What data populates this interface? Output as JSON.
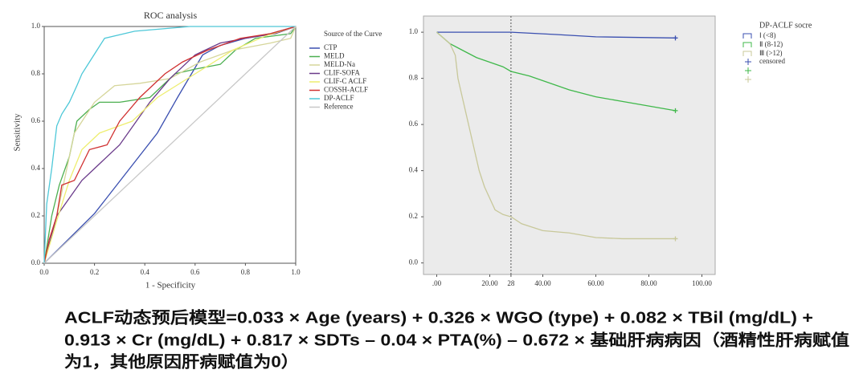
{
  "chart_data": [
    {
      "type": "line",
      "title": "ROC analysis",
      "x_label": "1 - Specificity",
      "y_label": "Sensitivity",
      "legend_title": "Source of the Curve",
      "xlim": [
        0,
        1
      ],
      "ylim": [
        0,
        1
      ],
      "xticks": [
        {
          "value": 0,
          "label": "0.0"
        },
        0.2,
        0.4,
        0.6,
        0.8,
        {
          "value": 1,
          "label": "1.0"
        }
      ],
      "yticks": [
        {
          "value": 0,
          "label": "0.0"
        },
        0.2,
        0.4,
        0.6,
        0.8,
        {
          "value": 1,
          "label": "1.0"
        }
      ],
      "series": [
        {
          "name": "CTP",
          "color": "#3a4fb0",
          "x": [
            0,
            0.2,
            0.45,
            0.53,
            0.63,
            0.7,
            0.8,
            0.9,
            1
          ],
          "values": [
            0,
            0.21,
            0.55,
            0.7,
            0.88,
            0.92,
            0.95,
            0.97,
            1
          ]
        },
        {
          "name": "MELD",
          "color": "#4caf50",
          "x": [
            0,
            0.03,
            0.06,
            0.1,
            0.13,
            0.18,
            0.22,
            0.3,
            0.42,
            0.52,
            0.6,
            0.7,
            0.76,
            0.84,
            0.98,
            1
          ],
          "values": [
            0,
            0.2,
            0.33,
            0.45,
            0.6,
            0.65,
            0.68,
            0.68,
            0.7,
            0.8,
            0.82,
            0.84,
            0.9,
            0.95,
            0.97,
            1
          ]
        },
        {
          "name": "MELD-Na",
          "color": "#d6d69a",
          "x": [
            0,
            0.05,
            0.12,
            0.2,
            0.28,
            0.38,
            0.5,
            0.62,
            0.75,
            0.9,
            0.98,
            1
          ],
          "values": [
            0,
            0.2,
            0.55,
            0.68,
            0.75,
            0.76,
            0.78,
            0.85,
            0.9,
            0.93,
            0.95,
            1
          ]
        },
        {
          "name": "CLIF-SOFA",
          "color": "#6a3a8a",
          "x": [
            0,
            0.05,
            0.15,
            0.3,
            0.42,
            0.5,
            0.6,
            0.7,
            0.8,
            0.92,
            1
          ],
          "values": [
            0,
            0.2,
            0.35,
            0.5,
            0.68,
            0.78,
            0.88,
            0.93,
            0.95,
            0.97,
            1
          ]
        },
        {
          "name": "CLIF-C ACLF",
          "color": "#eeee70",
          "x": [
            0,
            0.05,
            0.1,
            0.15,
            0.22,
            0.35,
            0.45,
            0.6,
            0.75,
            0.88,
            1
          ],
          "values": [
            0,
            0.18,
            0.35,
            0.48,
            0.55,
            0.6,
            0.7,
            0.8,
            0.9,
            0.96,
            1
          ]
        },
        {
          "name": "COSSH-ACLF",
          "color": "#d03030",
          "x": [
            0,
            0.02,
            0.05,
            0.07,
            0.12,
            0.18,
            0.25,
            0.3,
            0.38,
            0.48,
            0.55,
            0.65,
            0.78,
            0.9,
            1
          ],
          "values": [
            0,
            0.1,
            0.2,
            0.33,
            0.35,
            0.48,
            0.5,
            0.6,
            0.7,
            0.8,
            0.85,
            0.9,
            0.95,
            0.97,
            1
          ]
        },
        {
          "name": "DP-ACLF",
          "color": "#4ec8d8",
          "x": [
            0,
            0.01,
            0.03,
            0.05,
            0.07,
            0.1,
            0.13,
            0.15,
            0.18,
            0.21,
            0.24,
            0.36,
            0.58,
            1
          ],
          "values": [
            0,
            0.25,
            0.4,
            0.58,
            0.63,
            0.68,
            0.75,
            0.8,
            0.85,
            0.9,
            0.95,
            0.98,
            1,
            1
          ]
        },
        {
          "name": "Reference",
          "color": "#c8c8c8",
          "x": [
            0,
            1
          ],
          "values": [
            0,
            1
          ]
        }
      ]
    },
    {
      "type": "line",
      "legend_title": "DP-ACLF socre",
      "censored_label": "censored",
      "xlim": [
        -5,
        105
      ],
      "ylim": [
        -0.05,
        1.07
      ],
      "xticks": [
        {
          "value": 0,
          "label": ".00"
        },
        {
          "value": 20,
          "label": "20.00"
        },
        28,
        {
          "value": 40,
          "label": "40.00"
        },
        {
          "value": 60,
          "label": "60.00"
        },
        {
          "value": 80,
          "label": "80.00"
        },
        {
          "value": 100,
          "label": "100.00"
        }
      ],
      "yticks": [
        {
          "value": 0,
          "label": "0.0"
        },
        0.2,
        0.4,
        0.6,
        0.8,
        {
          "value": 1,
          "label": "1.0"
        }
      ],
      "series": [
        {
          "name": "Ⅰ (<8)",
          "color": "#3a4fb0",
          "x": [
            0,
            28,
            45,
            60,
            90
          ],
          "values": [
            1,
            1,
            0.99,
            0.98,
            0.975
          ]
        },
        {
          "name": "Ⅱ (8-12)",
          "color": "#3fb84a",
          "x": [
            0,
            5,
            10,
            15,
            20,
            25,
            28,
            35,
            40,
            50,
            60,
            70,
            80,
            90
          ],
          "values": [
            1,
            0.95,
            0.92,
            0.89,
            0.87,
            0.85,
            0.83,
            0.81,
            0.79,
            0.75,
            0.72,
            0.7,
            0.68,
            0.66
          ]
        },
        {
          "name": "Ⅲ (>12)",
          "color": "#c8c89a",
          "x": [
            0,
            5,
            7,
            8,
            9,
            10,
            12,
            14,
            16,
            18,
            20,
            22,
            25,
            28,
            32,
            40,
            50,
            60,
            70,
            80,
            90
          ],
          "values": [
            1,
            0.95,
            0.9,
            0.8,
            0.75,
            0.7,
            0.6,
            0.5,
            0.4,
            0.33,
            0.28,
            0.23,
            0.21,
            0.2,
            0.17,
            0.14,
            0.13,
            0.11,
            0.105,
            0.105,
            0.105
          ]
        }
      ]
    }
  ],
  "formula": {
    "lines": [
      "ACLF动态预后模型=0.033 × Age (years) + 0.326 × WGO (type) + 0.082 × TBil (mg/dL) +",
      "0.913 × Cr (mg/dL) + 0.817 × SDTs – 0.04 × PTA(%) – 0.672 × 基础肝病病因（酒精性肝病赋值",
      "为1，其他原因肝病赋值为0）"
    ]
  }
}
